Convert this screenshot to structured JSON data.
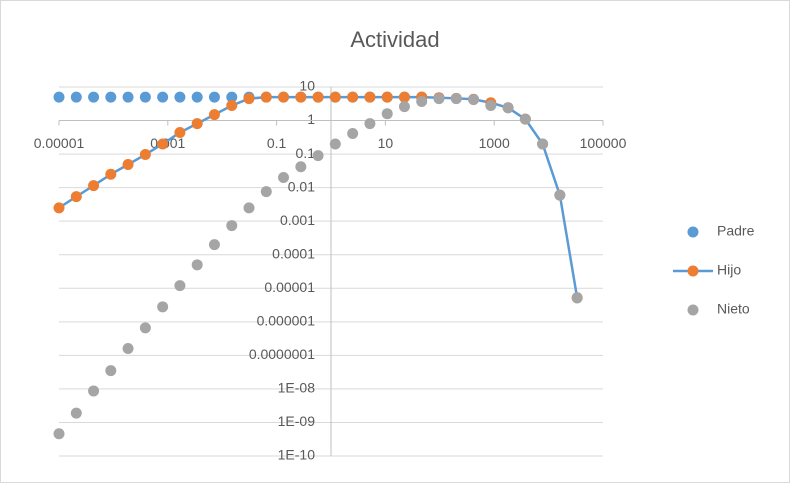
{
  "chart_data": {
    "type": "scatter",
    "title": "Actividad",
    "log_x": true,
    "log_y": true,
    "grid": "horizontal",
    "legend": "right",
    "xlim": [
      1e-05,
      100000
    ],
    "xticks": [
      1e-05,
      0.001,
      0.1,
      10,
      1000,
      100000
    ],
    "ylim": [
      1e-10,
      10
    ],
    "yticks": [
      10,
      1,
      0.1,
      0.01,
      0.001,
      0.0001,
      1e-05,
      {
        "value": 1e-06,
        "label": "0.000001"
      },
      {
        "value": 1e-07,
        "label": "0.0000001"
      },
      {
        "value": 1e-08,
        "label": "1E-08"
      },
      {
        "value": 1e-09,
        "label": "1E-09"
      },
      {
        "value": 1e-10,
        "label": "1E-10"
      }
    ],
    "series": [
      {
        "name": "Padre",
        "color": "#5b9bd5",
        "line": false,
        "x": [
          1e-05,
          2.08e-05,
          4.32e-05,
          8.96e-05,
          0.000186,
          0.000387,
          0.000804,
          0.00167,
          0.00347,
          0.0072,
          0.015,
          0.0311,
          0.0646,
          0.134,
          0.279,
          0.579,
          1.2,
          2.5,
          5.19,
          10.8,
          22.4,
          46.5
        ],
        "values": [
          5,
          5,
          5,
          5,
          5,
          5,
          5,
          5,
          5,
          5,
          5,
          5,
          5,
          5,
          5,
          5,
          5,
          5,
          5,
          5,
          5,
          5
        ]
      },
      {
        "name": "Hijo",
        "color": "#ed7d31",
        "line": true,
        "line_color": "#5b9bd5",
        "x": [
          1e-05,
          2.08e-05,
          4.32e-05,
          8.96e-05,
          0.000186,
          0.000387,
          0.000804,
          0.00167,
          0.00347,
          0.0072,
          0.015,
          0.0311,
          0.0646,
          0.134,
          0.279,
          0.579,
          1.2,
          2.5,
          5.19,
          10.8,
          22.4,
          46.5,
          96.6,
          201,
          417,
          866,
          1800,
          3740,
          7760,
          16100,
          33500
        ],
        "values": [
          0.0025,
          0.0054,
          0.0115,
          0.025,
          0.049,
          0.097,
          0.2,
          0.44,
          0.81,
          1.5,
          2.8,
          4.5,
          5,
          5,
          5,
          5,
          5,
          5,
          5,
          5,
          5,
          5,
          4.8,
          4.6,
          4.3,
          3.4,
          2.4,
          1.1,
          0.2,
          0.006,
          5.2e-06
        ]
      },
      {
        "name": "Nieto",
        "color": "#a5a5a5",
        "line": false,
        "x": [
          1e-05,
          2.08e-05,
          4.32e-05,
          8.96e-05,
          0.000186,
          0.000387,
          0.000804,
          0.00167,
          0.00347,
          0.0072,
          0.015,
          0.0311,
          0.0646,
          0.134,
          0.279,
          0.579,
          1.2,
          2.5,
          5.19,
          10.8,
          22.4,
          46.5,
          96.6,
          201,
          417,
          866,
          1800,
          3740,
          7760,
          16100,
          33500
        ],
        "values": [
          4.6e-10,
          1.9e-09,
          8.7e-09,
          3.5e-08,
          1.6e-07,
          6.6e-07,
          2.8e-06,
          1.2e-05,
          5e-05,
          0.0002,
          0.00074,
          0.0025,
          0.0076,
          0.02,
          0.042,
          0.09,
          0.2,
          0.41,
          0.81,
          1.6,
          2.6,
          3.7,
          4.5,
          4.5,
          4.2,
          2.8,
          2.4,
          1.1,
          0.2,
          0.006,
          5.2e-06
        ]
      }
    ]
  }
}
